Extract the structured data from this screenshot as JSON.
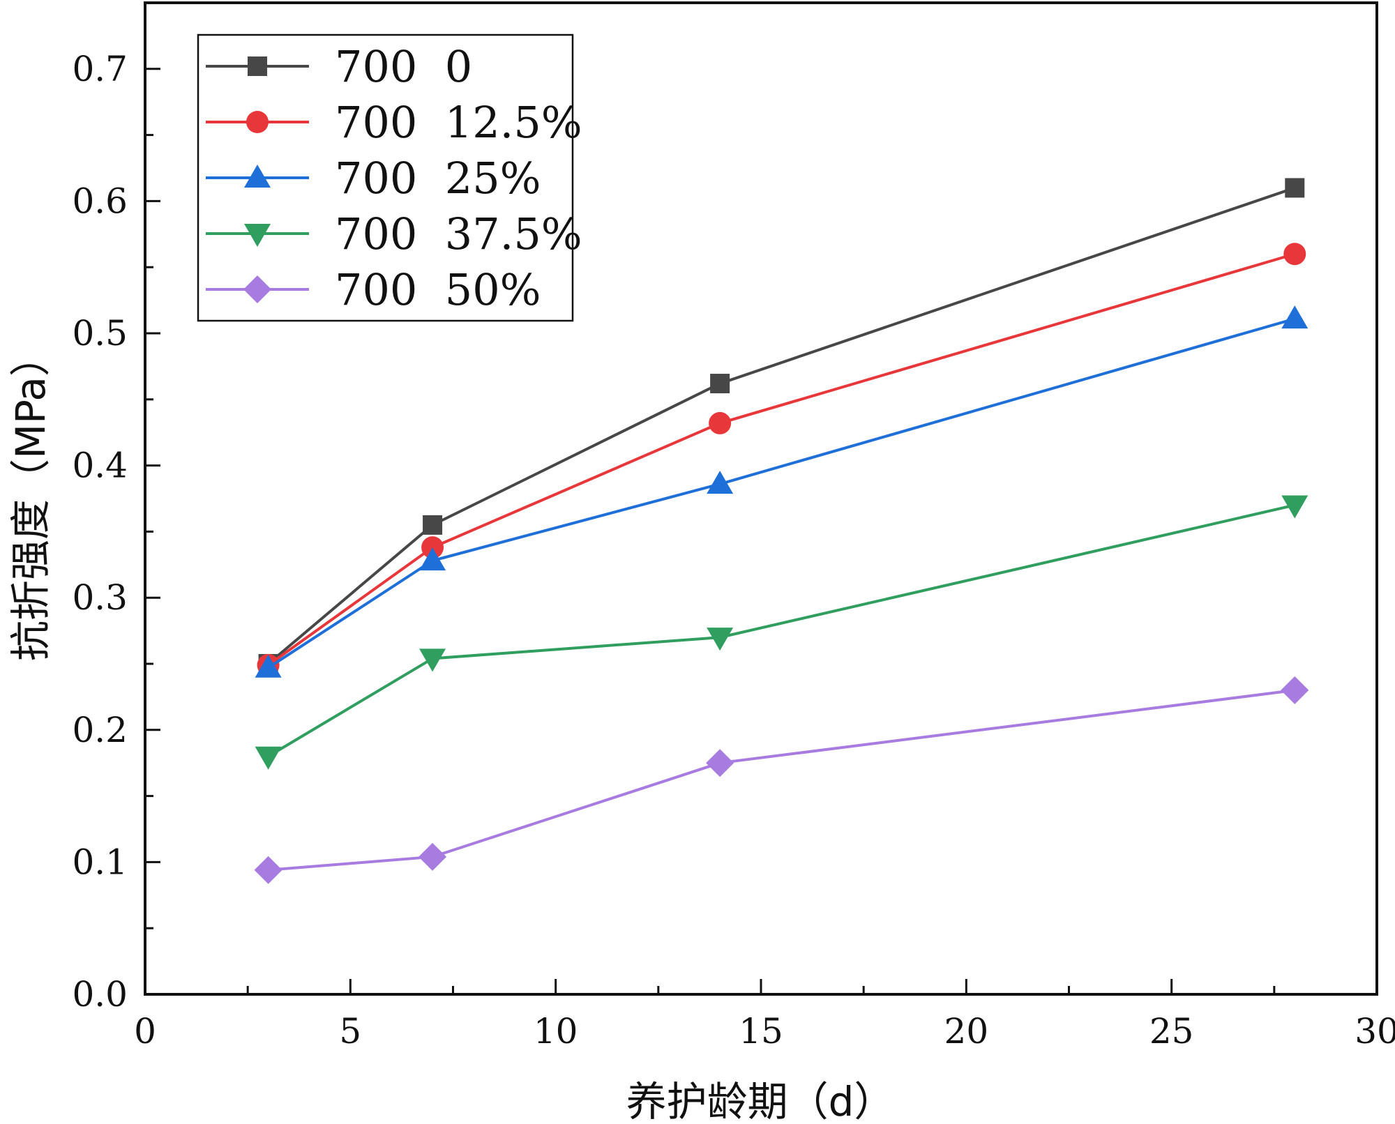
{
  "chart_data": {
    "type": "line",
    "title": "",
    "xlabel": "养护龄期（d）",
    "ylabel": "抗折强度（MPa）",
    "xlim": [
      0,
      30
    ],
    "ylim": [
      0,
      0.75
    ],
    "x_ticks": [
      0,
      5,
      10,
      15,
      20,
      25,
      30
    ],
    "x_tick_labels": [
      "0",
      "5",
      "10",
      "15",
      "20",
      "25",
      "30"
    ],
    "y_ticks": [
      0,
      0.1,
      0.2,
      0.3,
      0.4,
      0.5,
      0.6,
      0.7
    ],
    "y_tick_labels": [
      "0.0",
      "0.1",
      "0.2",
      "0.3",
      "0.4",
      "0.5",
      "0.6",
      "0.7"
    ],
    "grid": false,
    "legend_position": "top-left",
    "x": [
      3,
      7,
      14,
      28
    ],
    "series": [
      {
        "name": "700  0",
        "values": [
          0.25,
          0.355,
          0.462,
          0.61
        ],
        "color": "#474747",
        "marker": "square"
      },
      {
        "name": "700  12.5%",
        "values": [
          0.249,
          0.338,
          0.432,
          0.56
        ],
        "color": "#e8373a",
        "marker": "circle"
      },
      {
        "name": "700  25%",
        "values": [
          0.247,
          0.328,
          0.386,
          0.511
        ],
        "color": "#1f6fd8",
        "marker": "triangle-up"
      },
      {
        "name": "700  37.5%",
        "values": [
          0.18,
          0.254,
          0.27,
          0.37
        ],
        "color": "#2f9e5e",
        "marker": "triangle-down"
      },
      {
        "name": "700  50%",
        "values": [
          0.094,
          0.104,
          0.175,
          0.23
        ],
        "color": "#a77be0",
        "marker": "diamond"
      }
    ]
  }
}
